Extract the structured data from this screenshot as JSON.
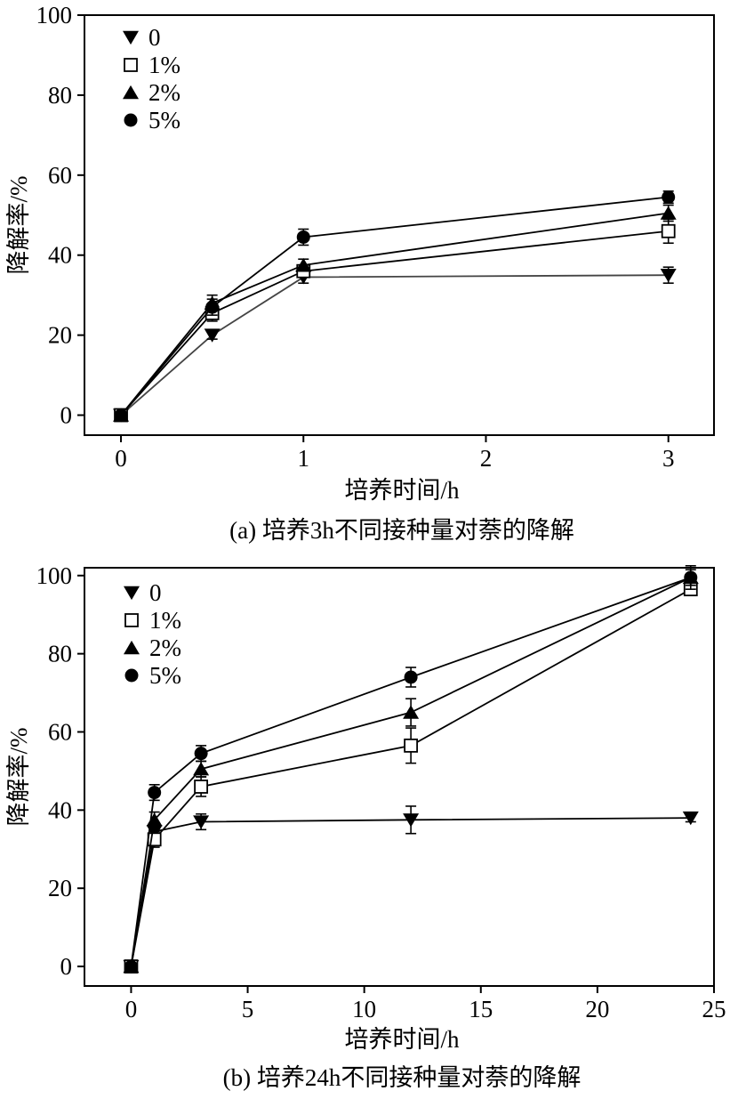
{
  "chart_data": [
    {
      "type": "line",
      "title": "",
      "caption": "(a) 培养3h不同接种量对萘的降解",
      "xlabel": "培养时间/h",
      "ylabel": "降解率/%",
      "xlim": [
        -0.2,
        3.25
      ],
      "ylim": [
        -5,
        100
      ],
      "xticks": [
        0,
        1,
        2,
        3
      ],
      "yticks": [
        0,
        20,
        40,
        60,
        80,
        100
      ],
      "legend_position": "top-left",
      "series": [
        {
          "name": "0",
          "marker": "triangle-down",
          "x": [
            0,
            0.5,
            1,
            3
          ],
          "y": [
            0,
            20,
            34.5,
            35
          ],
          "err": [
            0.5,
            1,
            1.5,
            2
          ]
        },
        {
          "name": "1%",
          "marker": "square-open",
          "x": [
            0,
            0.5,
            1,
            3
          ],
          "y": [
            0,
            25.5,
            36,
            46
          ],
          "err": [
            0.5,
            2,
            1.5,
            3
          ]
        },
        {
          "name": "2%",
          "marker": "triangle-up",
          "x": [
            0,
            0.5,
            1,
            3
          ],
          "y": [
            0,
            28,
            37.5,
            50.5
          ],
          "err": [
            0.5,
            2,
            1.5,
            2
          ]
        },
        {
          "name": "5%",
          "marker": "circle",
          "x": [
            0,
            0.5,
            1,
            3
          ],
          "y": [
            0,
            27,
            44.5,
            54.5
          ],
          "err": [
            0.5,
            2,
            2,
            1.5
          ]
        }
      ]
    },
    {
      "type": "line",
      "title": "",
      "caption": "(b) 培养24h不同接种量对萘的降解",
      "xlabel": "培养时间/h",
      "ylabel": "降解率/%",
      "xlim": [
        -2,
        25
      ],
      "ylim": [
        -5,
        102
      ],
      "xticks": [
        0,
        5,
        10,
        15,
        20,
        25
      ],
      "yticks": [
        0,
        20,
        40,
        60,
        80,
        100
      ],
      "legend_position": "top-left",
      "series": [
        {
          "name": "0",
          "marker": "triangle-down",
          "x": [
            0,
            1,
            3,
            12,
            24
          ],
          "y": [
            0,
            34.5,
            37,
            37.5,
            38
          ],
          "err": [
            0.5,
            1.5,
            2,
            3.5,
            1
          ]
        },
        {
          "name": "1%",
          "marker": "square-open",
          "x": [
            0,
            1,
            3,
            12,
            24
          ],
          "y": [
            0,
            32.5,
            46,
            56.5,
            96.5
          ],
          "err": [
            0.5,
            2,
            2.5,
            4.5,
            1
          ]
        },
        {
          "name": "2%",
          "marker": "triangle-up",
          "x": [
            0,
            1,
            3,
            12,
            24
          ],
          "y": [
            0,
            37.5,
            50.5,
            65,
            99.5
          ],
          "err": [
            0.5,
            2,
            2,
            3.5,
            2
          ]
        },
        {
          "name": "5%",
          "marker": "circle",
          "x": [
            0,
            1,
            3,
            12,
            24
          ],
          "y": [
            0,
            44.5,
            54.5,
            74,
            99.5
          ],
          "err": [
            0.5,
            2,
            2,
            2.5,
            3
          ]
        }
      ]
    }
  ]
}
